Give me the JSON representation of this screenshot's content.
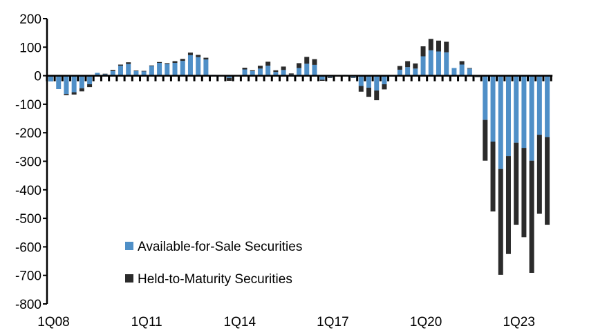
{
  "chart_data": {
    "type": "bar",
    "stacked": true,
    "title": "",
    "xlabel": "",
    "ylabel": "",
    "ylim": [
      -800,
      200
    ],
    "yticks": [
      200,
      100,
      0,
      -100,
      -200,
      -300,
      -400,
      -500,
      -600,
      -700,
      -800
    ],
    "xtick_labels": [
      "1Q08",
      "1Q11",
      "1Q14",
      "1Q17",
      "1Q20",
      "1Q23"
    ],
    "grid": false,
    "legend_position": "bottom-left-inside",
    "categories_range": "1Q08 to 1Q24 (quarterly)",
    "colors": {
      "afs": "#4f8fc7",
      "htm": "#2b2b2b"
    },
    "series": [
      {
        "name": "Available-for-Sale Securities",
        "values": [
          -20,
          -47,
          -64,
          -58,
          -44,
          -30,
          10,
          5,
          16,
          35,
          41,
          16,
          15,
          34,
          45,
          41,
          45,
          52,
          72,
          65,
          57,
          3,
          2,
          -8,
          2,
          22,
          16,
          25,
          35,
          13,
          20,
          4,
          27,
          42,
          38,
          -14,
          -5,
          0,
          3,
          -6,
          -36,
          -42,
          -52,
          -30,
          -3,
          21,
          30,
          25,
          68,
          89,
          85,
          82,
          27,
          39,
          25,
          -3,
          -155,
          -231,
          -327,
          -282,
          -235,
          -253,
          -298,
          -207,
          -215
        ]
      },
      {
        "name": "Held-to-Maturity Securities",
        "values": [
          0,
          0,
          -4,
          -8,
          -11,
          -10,
          0,
          2,
          4,
          4,
          6,
          2,
          2,
          2,
          3,
          3,
          6,
          7,
          9,
          8,
          6,
          0,
          0,
          -10,
          0,
          6,
          3,
          10,
          14,
          6,
          12,
          4,
          17,
          24,
          20,
          -4,
          -3,
          0,
          0,
          -2,
          -20,
          -32,
          -34,
          -18,
          0,
          13,
          21,
          18,
          35,
          40,
          38,
          37,
          0,
          12,
          2,
          -2,
          -143,
          -245,
          -371,
          -343,
          -288,
          -313,
          -393,
          -277,
          -308
        ]
      }
    ]
  }
}
